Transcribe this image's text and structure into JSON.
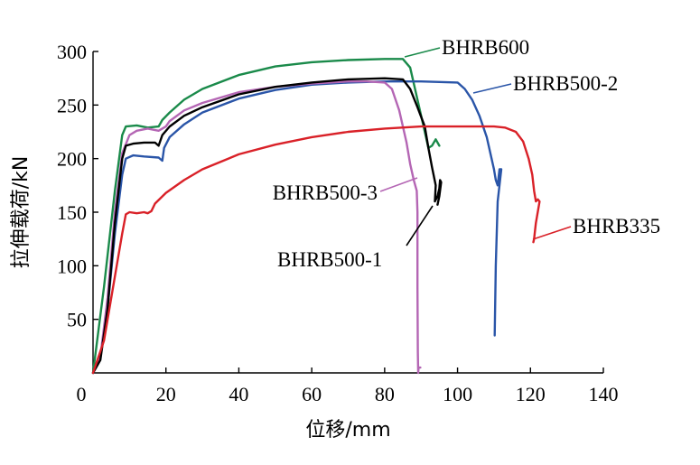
{
  "chart_data": {
    "type": "line",
    "title": "",
    "xlabel": "位移/mm",
    "ylabel": "拉伸载荷/kN",
    "xlim": [
      0,
      140
    ],
    "ylim": [
      0,
      300
    ],
    "x_ticks": [
      "0",
      "20",
      "40",
      "60",
      "80",
      "100",
      "120",
      "140"
    ],
    "y_ticks": [
      "50",
      "100",
      "150",
      "200",
      "250",
      "300"
    ],
    "grid": false,
    "legend": "callout labels next to curves",
    "series": [
      {
        "name": "BHRB600",
        "color": "#1a8a4a",
        "points": [
          [
            0,
            0
          ],
          [
            3,
            80
          ],
          [
            6,
            170
          ],
          [
            8,
            222
          ],
          [
            9,
            230
          ],
          [
            12,
            231
          ],
          [
            15,
            229
          ],
          [
            18,
            230
          ],
          [
            19,
            236
          ],
          [
            21,
            243
          ],
          [
            25,
            255
          ],
          [
            30,
            265
          ],
          [
            40,
            278
          ],
          [
            50,
            286
          ],
          [
            60,
            290
          ],
          [
            70,
            292
          ],
          [
            80,
            293
          ],
          [
            85,
            293
          ],
          [
            87,
            285
          ],
          [
            89,
            255
          ],
          [
            91,
            225
          ],
          [
            92,
            210
          ],
          [
            93,
            212
          ],
          [
            94,
            218
          ],
          [
            95,
            212
          ]
        ]
      },
      {
        "name": "BHRB500-2",
        "color": "#2a55a8",
        "points": [
          [
            0,
            0
          ],
          [
            2,
            15
          ],
          [
            4,
            60
          ],
          [
            6,
            130
          ],
          [
            8,
            185
          ],
          [
            9,
            200
          ],
          [
            11,
            203
          ],
          [
            14,
            202
          ],
          [
            18,
            201
          ],
          [
            19,
            198
          ],
          [
            19.5,
            210
          ],
          [
            21,
            220
          ],
          [
            25,
            232
          ],
          [
            30,
            243
          ],
          [
            40,
            256
          ],
          [
            50,
            264
          ],
          [
            60,
            269
          ],
          [
            70,
            271
          ],
          [
            80,
            272
          ],
          [
            90,
            272
          ],
          [
            100,
            271
          ],
          [
            102,
            265
          ],
          [
            104,
            255
          ],
          [
            106,
            240
          ],
          [
            108,
            220
          ],
          [
            109,
            205
          ],
          [
            110,
            190
          ],
          [
            110.5,
            180
          ],
          [
            111,
            175
          ],
          [
            111.5,
            190
          ],
          [
            112,
            190
          ],
          [
            111,
            160
          ],
          [
            110.5,
            100
          ],
          [
            110.2,
            35
          ]
        ]
      },
      {
        "name": "BHRB500-3",
        "color": "#b466b4",
        "points": [
          [
            0,
            0
          ],
          [
            2,
            15
          ],
          [
            4,
            70
          ],
          [
            6,
            150
          ],
          [
            8,
            205
          ],
          [
            10,
            222
          ],
          [
            12,
            226
          ],
          [
            15,
            228
          ],
          [
            18,
            226
          ],
          [
            20,
            230
          ],
          [
            21,
            235
          ],
          [
            25,
            245
          ],
          [
            30,
            252
          ],
          [
            40,
            262
          ],
          [
            50,
            267
          ],
          [
            60,
            270
          ],
          [
            70,
            272
          ],
          [
            75,
            272
          ],
          [
            80,
            271
          ],
          [
            82,
            265
          ],
          [
            84,
            245
          ],
          [
            86,
            215
          ],
          [
            87,
            195
          ],
          [
            88,
            180
          ],
          [
            88.8,
            170
          ],
          [
            89,
            150
          ],
          [
            89,
            80
          ],
          [
            89.1,
            20
          ],
          [
            89.2,
            0
          ],
          [
            89.3,
            5
          ],
          [
            89.8,
            5
          ]
        ]
      },
      {
        "name": "BHRB500-1",
        "color": "#000000",
        "points": [
          [
            0,
            0
          ],
          [
            2,
            12
          ],
          [
            4,
            60
          ],
          [
            6,
            140
          ],
          [
            8,
            200
          ],
          [
            9,
            212
          ],
          [
            11,
            214
          ],
          [
            14,
            215
          ],
          [
            17,
            215
          ],
          [
            18,
            212
          ],
          [
            19,
            222
          ],
          [
            21,
            230
          ],
          [
            25,
            240
          ],
          [
            30,
            248
          ],
          [
            40,
            260
          ],
          [
            50,
            267
          ],
          [
            60,
            271
          ],
          [
            70,
            274
          ],
          [
            80,
            275
          ],
          [
            85,
            274
          ],
          [
            87,
            265
          ],
          [
            89,
            248
          ],
          [
            91,
            230
          ],
          [
            92,
            210
          ],
          [
            93,
            192
          ],
          [
            94,
            175
          ],
          [
            93.8,
            160
          ],
          [
            94.5,
            165
          ],
          [
            95,
            172
          ],
          [
            95.2,
            180
          ],
          [
            95.5,
            178
          ],
          [
            95,
            165
          ],
          [
            94.5,
            157
          ]
        ]
      },
      {
        "name": "BHRB335",
        "color": "#d92128",
        "points": [
          [
            0,
            0
          ],
          [
            3,
            30
          ],
          [
            6,
            90
          ],
          [
            8,
            130
          ],
          [
            9,
            148
          ],
          [
            10,
            150
          ],
          [
            12,
            149
          ],
          [
            14,
            150
          ],
          [
            15,
            149
          ],
          [
            16,
            151
          ],
          [
            17,
            158
          ],
          [
            20,
            168
          ],
          [
            25,
            180
          ],
          [
            30,
            190
          ],
          [
            40,
            204
          ],
          [
            50,
            213
          ],
          [
            60,
            220
          ],
          [
            70,
            225
          ],
          [
            80,
            228
          ],
          [
            90,
            230
          ],
          [
            100,
            230
          ],
          [
            110,
            230
          ],
          [
            113,
            229
          ],
          [
            116,
            225
          ],
          [
            118,
            216
          ],
          [
            119.5,
            200
          ],
          [
            120.5,
            185
          ],
          [
            121,
            170
          ],
          [
            121.5,
            160
          ],
          [
            122,
            162
          ],
          [
            122.5,
            160
          ],
          [
            121.5,
            140
          ],
          [
            121,
            125
          ],
          [
            120.8,
            122
          ]
        ]
      }
    ],
    "annotations": [
      {
        "text": "BHRB600",
        "series": "BHRB600"
      },
      {
        "text": "BHRB500-2",
        "series": "BHRB500-2"
      },
      {
        "text": "BHRB500-3",
        "series": "BHRB500-3"
      },
      {
        "text": "BHRB500-1",
        "series": "BHRB500-1"
      },
      {
        "text": "BHRB335",
        "series": "BHRB335"
      }
    ]
  }
}
